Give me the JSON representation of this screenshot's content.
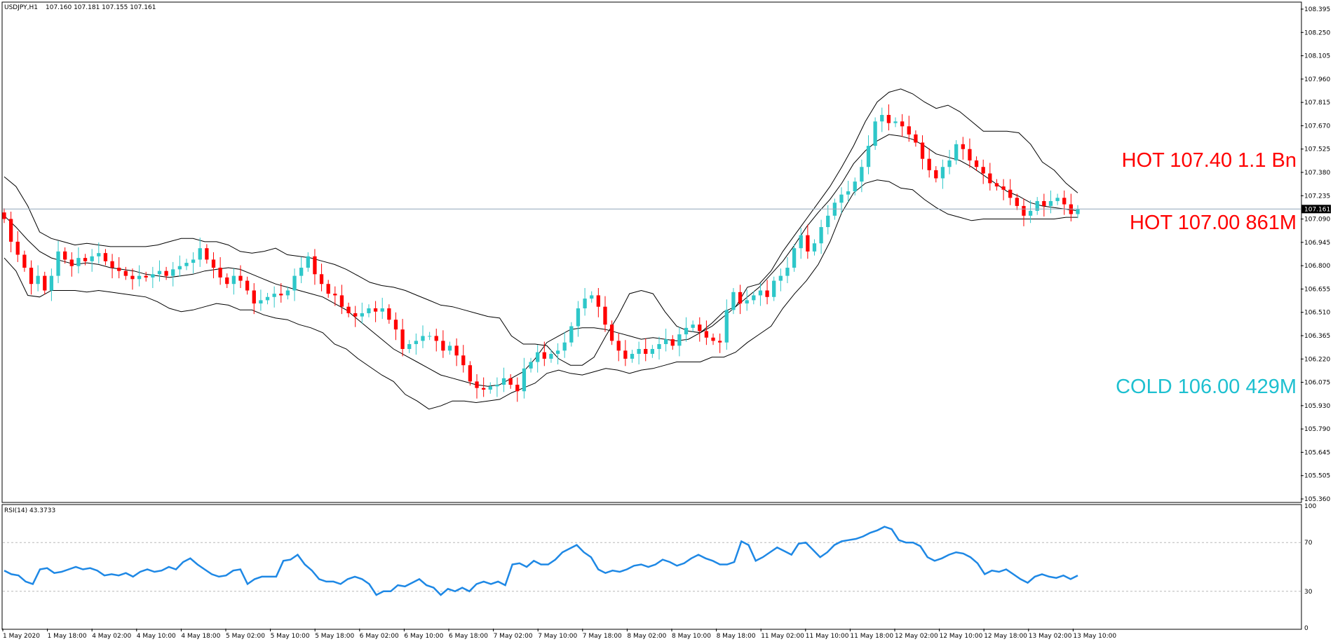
{
  "header": {
    "symbol": "USDJPY,H1",
    "ohlc": "107.160 107.181 107.155 107.161"
  },
  "rsi_header": "RSI(14) 43.3733",
  "current_price_label": "107.161",
  "colors": {
    "bull": "#2ec7c9",
    "bear": "#ff0000",
    "band": "#000000",
    "rsi": "#1e88e5",
    "price_line": "#8fa6b8",
    "hot": "#ff0000",
    "cold": "#1ec0d0"
  },
  "annotations": [
    {
      "text": "HOT 107.40 1.1 Bn",
      "color": "#ff0000",
      "price": 107.4
    },
    {
      "text": "HOT 107.00 861M",
      "color": "#ff0000",
      "price": 107.0
    },
    {
      "text": "COLD 106.00 429M",
      "color": "#1ec0d0",
      "price": 106.0
    }
  ],
  "chart_data": [
    {
      "type": "candlestick",
      "title": "USDJPY,H1",
      "y_ticks": [
        "108.395",
        "108.250",
        "108.105",
        "107.960",
        "107.815",
        "107.670",
        "107.525",
        "107.380",
        "107.235",
        "107.090",
        "106.945",
        "106.800",
        "106.655",
        "106.510",
        "106.365",
        "106.220",
        "106.075",
        "105.930",
        "105.790",
        "105.645",
        "105.505",
        "105.360"
      ],
      "ylim": [
        105.36,
        108.43
      ],
      "current_price": 107.161,
      "x_ticks": [
        "1 May 2020",
        "1 May 18:00",
        "4 May 02:00",
        "4 May 10:00",
        "4 May 18:00",
        "5 May 02:00",
        "5 May 10:00",
        "5 May 18:00",
        "6 May 02:00",
        "6 May 10:00",
        "6 May 18:00",
        "7 May 02:00",
        "7 May 10:00",
        "7 May 18:00",
        "8 May 02:00",
        "8 May 10:00",
        "8 May 18:00",
        "11 May 02:00",
        "11 May 10:00",
        "11 May 18:00",
        "12 May 02:00",
        "12 May 10:00",
        "12 May 18:00",
        "13 May 02:00",
        "13 May 10:00"
      ],
      "close": [
        107.1,
        106.96,
        106.88,
        106.8,
        106.7,
        106.75,
        106.66,
        106.75,
        106.9,
        106.85,
        106.81,
        106.86,
        106.84,
        106.87,
        106.89,
        106.84,
        106.8,
        106.78,
        106.75,
        106.73,
        106.75,
        106.74,
        106.76,
        106.78,
        106.75,
        106.79,
        106.81,
        106.83,
        106.85,
        106.92,
        106.85,
        106.8,
        106.74,
        106.7,
        106.75,
        106.72,
        106.66,
        106.58,
        106.6,
        106.62,
        106.64,
        106.63,
        106.66,
        106.75,
        106.8,
        106.87,
        106.76,
        106.7,
        106.64,
        106.63,
        106.56,
        106.52,
        106.5,
        106.52,
        106.55,
        106.53,
        106.55,
        106.48,
        106.42,
        106.3,
        106.33,
        106.35,
        106.38,
        106.38,
        106.35,
        106.29,
        106.32,
        106.26,
        106.2,
        106.1,
        106.06,
        106.05,
        106.07,
        106.08,
        106.12,
        106.08,
        106.04,
        106.18,
        106.22,
        106.28,
        106.24,
        106.27,
        106.29,
        106.34,
        106.44,
        106.55,
        106.61,
        106.63,
        106.56,
        106.45,
        106.35,
        106.29,
        106.24,
        106.27,
        106.3,
        106.27,
        106.3,
        106.33,
        106.36,
        106.32,
        106.39,
        106.43,
        106.45,
        106.41,
        106.37,
        106.35,
        106.34,
        106.54,
        106.65,
        106.58,
        106.6,
        106.63,
        106.66,
        106.62,
        106.72,
        106.75,
        106.8,
        106.92,
        107.0,
        106.9,
        106.95,
        107.05,
        107.12,
        107.2,
        107.25,
        107.27,
        107.33,
        107.42,
        107.55,
        107.7,
        107.74,
        107.69,
        107.7,
        107.67,
        107.62,
        107.57,
        107.47,
        107.4,
        107.35,
        107.42,
        107.46,
        107.56,
        107.53,
        107.46,
        107.42,
        107.38,
        107.32,
        107.3,
        107.28,
        107.23,
        107.18,
        107.12,
        107.15,
        107.21,
        107.18,
        107.21,
        107.23,
        107.19,
        107.13,
        107.16
      ],
      "series": [
        {
          "name": "upper",
          "values": [
            107.36,
            107.3,
            107.18,
            107.02,
            106.98,
            106.96,
            106.94,
            106.95,
            106.94,
            106.93,
            106.93,
            106.93,
            106.93,
            106.94,
            106.96,
            106.98,
            106.98,
            106.96,
            106.96,
            106.94,
            106.9,
            106.89,
            106.9,
            106.92,
            106.88,
            106.87,
            106.86,
            106.84,
            106.82,
            106.79,
            106.75,
            106.71,
            106.69,
            106.68,
            106.66,
            106.63,
            106.6,
            106.57,
            106.56,
            106.54,
            106.52,
            106.5,
            106.49,
            106.38,
            106.33,
            106.33,
            106.32,
            106.24,
            106.2,
            106.2,
            106.25,
            106.38,
            106.5,
            106.64,
            106.66,
            106.64,
            106.53,
            106.44,
            106.41,
            106.4,
            106.44,
            106.5,
            106.56,
            106.68,
            106.7,
            106.78,
            106.9,
            107.0,
            107.1,
            107.2,
            107.3,
            107.42,
            107.55,
            107.7,
            107.82,
            107.88,
            107.9,
            107.87,
            107.82,
            107.78,
            107.8,
            107.76,
            107.7,
            107.64,
            107.64,
            107.64,
            107.63,
            107.56,
            107.45,
            107.4,
            107.32,
            107.26
          ]
        },
        {
          "name": "middle",
          "values": [
            107.12,
            107.05,
            106.97,
            106.9,
            106.86,
            106.84,
            106.82,
            106.83,
            106.82,
            106.8,
            106.79,
            106.78,
            106.76,
            106.75,
            106.74,
            106.75,
            106.76,
            106.78,
            106.79,
            106.8,
            106.79,
            106.76,
            106.73,
            106.7,
            106.68,
            106.66,
            106.64,
            106.62,
            106.58,
            106.54,
            106.48,
            106.42,
            106.36,
            106.3,
            106.26,
            106.22,
            106.18,
            106.14,
            106.12,
            106.1,
            106.08,
            106.07,
            106.08,
            106.12,
            106.16,
            106.24,
            106.34,
            106.38,
            106.42,
            106.43,
            106.43,
            106.42,
            106.4,
            106.38,
            106.36,
            106.37,
            106.36,
            106.35,
            106.36,
            106.4,
            106.46,
            106.53,
            106.56,
            106.62,
            106.68,
            106.76,
            106.84,
            106.94,
            107.05,
            107.14,
            107.22,
            107.32,
            107.44,
            107.52,
            107.58,
            107.62,
            107.61,
            107.59,
            107.55,
            107.5,
            107.48,
            107.46,
            107.42,
            107.37,
            107.32,
            107.27,
            107.24,
            107.2,
            107.18,
            107.17,
            107.16,
            107.15
          ]
        },
        {
          "name": "lower",
          "values": [
            106.86,
            106.78,
            106.63,
            106.62,
            106.66,
            106.66,
            106.66,
            106.65,
            106.66,
            106.65,
            106.64,
            106.63,
            106.62,
            106.59,
            106.55,
            106.53,
            106.54,
            106.56,
            106.58,
            106.57,
            106.54,
            106.54,
            106.51,
            106.49,
            106.48,
            106.45,
            106.43,
            106.4,
            106.33,
            106.3,
            106.24,
            106.19,
            106.14,
            106.1,
            106.02,
            105.98,
            105.93,
            105.95,
            105.98,
            105.98,
            105.97,
            105.98,
            105.99,
            106.03,
            106.06,
            106.09,
            106.15,
            106.17,
            106.15,
            106.14,
            106.16,
            106.18,
            106.17,
            106.15,
            106.17,
            106.18,
            106.2,
            106.22,
            106.22,
            106.22,
            106.25,
            106.25,
            106.28,
            106.34,
            106.39,
            106.44,
            106.55,
            106.64,
            106.72,
            106.82,
            106.96,
            107.14,
            107.26,
            107.32,
            107.34,
            107.33,
            107.29,
            107.28,
            107.22,
            107.17,
            107.13,
            107.11,
            107.09,
            107.1,
            107.1,
            107.1,
            107.1,
            107.1,
            107.1,
            107.1,
            107.11,
            107.11
          ]
        }
      ]
    },
    {
      "type": "line",
      "title": "RSI(14) 43.3733",
      "y_ticks": [
        "100",
        "70",
        "30",
        "0"
      ],
      "ylim": [
        0,
        100
      ],
      "levels": [
        70,
        30
      ],
      "series": [
        {
          "name": "RSI(14)",
          "values": [
            47,
            44,
            43,
            38,
            36,
            48,
            49,
            45,
            46,
            48,
            50,
            48,
            49,
            47,
            43,
            44,
            43,
            45,
            42,
            46,
            48,
            46,
            47,
            50,
            48,
            54,
            57,
            52,
            48,
            44,
            42,
            43,
            47,
            48,
            36,
            40,
            42,
            42,
            42,
            55,
            56,
            60,
            52,
            47,
            40,
            38,
            38,
            36,
            40,
            42,
            40,
            36,
            27,
            30,
            30,
            35,
            34,
            37,
            40,
            35,
            33,
            27,
            32,
            30,
            33,
            30,
            36,
            38,
            36,
            38,
            35,
            52,
            53,
            50,
            55,
            52,
            52,
            56,
            62,
            65,
            68,
            62,
            58,
            48,
            45,
            47,
            46,
            48,
            51,
            52,
            50,
            52,
            56,
            54,
            51,
            53,
            57,
            60,
            57,
            55,
            52,
            52,
            54,
            71,
            68,
            55,
            58,
            62,
            66,
            63,
            60,
            69,
            70,
            64,
            58,
            62,
            68,
            71,
            72,
            73,
            75,
            78,
            80,
            83,
            81,
            72,
            70,
            70,
            67,
            58,
            55,
            57,
            60,
            62,
            61,
            58,
            53,
            44,
            47,
            46,
            48,
            44,
            40,
            37,
            42,
            44,
            42,
            41,
            43,
            40,
            43
          ]
        }
      ]
    }
  ]
}
